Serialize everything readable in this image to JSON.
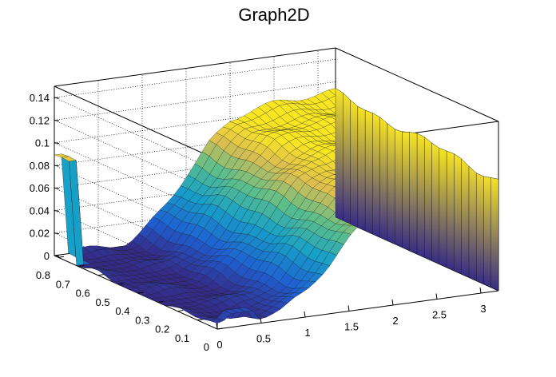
{
  "chart_data": {
    "type": "surface",
    "title": "Graph2D",
    "x": {
      "range": [
        0,
        3.2
      ],
      "ticks": [
        0,
        0.5,
        1,
        1.5,
        2,
        2.5,
        3
      ],
      "tick_labels": [
        "0",
        "0.5",
        "1",
        "1.5",
        "2",
        "2.5",
        "3"
      ]
    },
    "y": {
      "range": [
        0,
        0.82
      ],
      "ticks": [
        0,
        0.1,
        0.2,
        0.3,
        0.4,
        0.5,
        0.6,
        0.7,
        0.8
      ],
      "tick_labels": [
        "0",
        "0.1",
        "0.2",
        "0.3",
        "0.4",
        "0.5",
        "0.6",
        "0.7",
        "0.8"
      ]
    },
    "z": {
      "range": [
        0,
        0.15
      ],
      "ticks": [
        0,
        0.02,
        0.04,
        0.06,
        0.08,
        0.1,
        0.12,
        0.14
      ],
      "tick_labels": [
        "0",
        "0.02",
        "0.04",
        "0.06",
        "0.08",
        "0.1",
        "0.12",
        "0.14"
      ]
    },
    "grid": true,
    "colormap": "viridis-like (blue to yellow)",
    "surface": {
      "description": "Near-zero plateau for small x; sigmoid rise to about 0.095 between x=0.9 and x=2.0; plateau near 0.09-0.10 for larger x; spike near 0.09 at x=0, y=0.8",
      "x_samples": [
        0,
        0.25,
        0.5,
        0.75,
        1.0,
        1.25,
        1.5,
        1.75,
        2.0,
        2.25,
        2.5,
        2.75,
        3.0,
        3.2
      ],
      "z_profile": [
        0.003,
        0.004,
        0.004,
        0.008,
        0.02,
        0.04,
        0.062,
        0.08,
        0.09,
        0.093,
        0.095,
        0.096,
        0.097,
        0.098
      ]
    },
    "colors": {
      "low": "#2b3a9e",
      "mid": "#2fa59a",
      "high": "#f7e625"
    }
  }
}
